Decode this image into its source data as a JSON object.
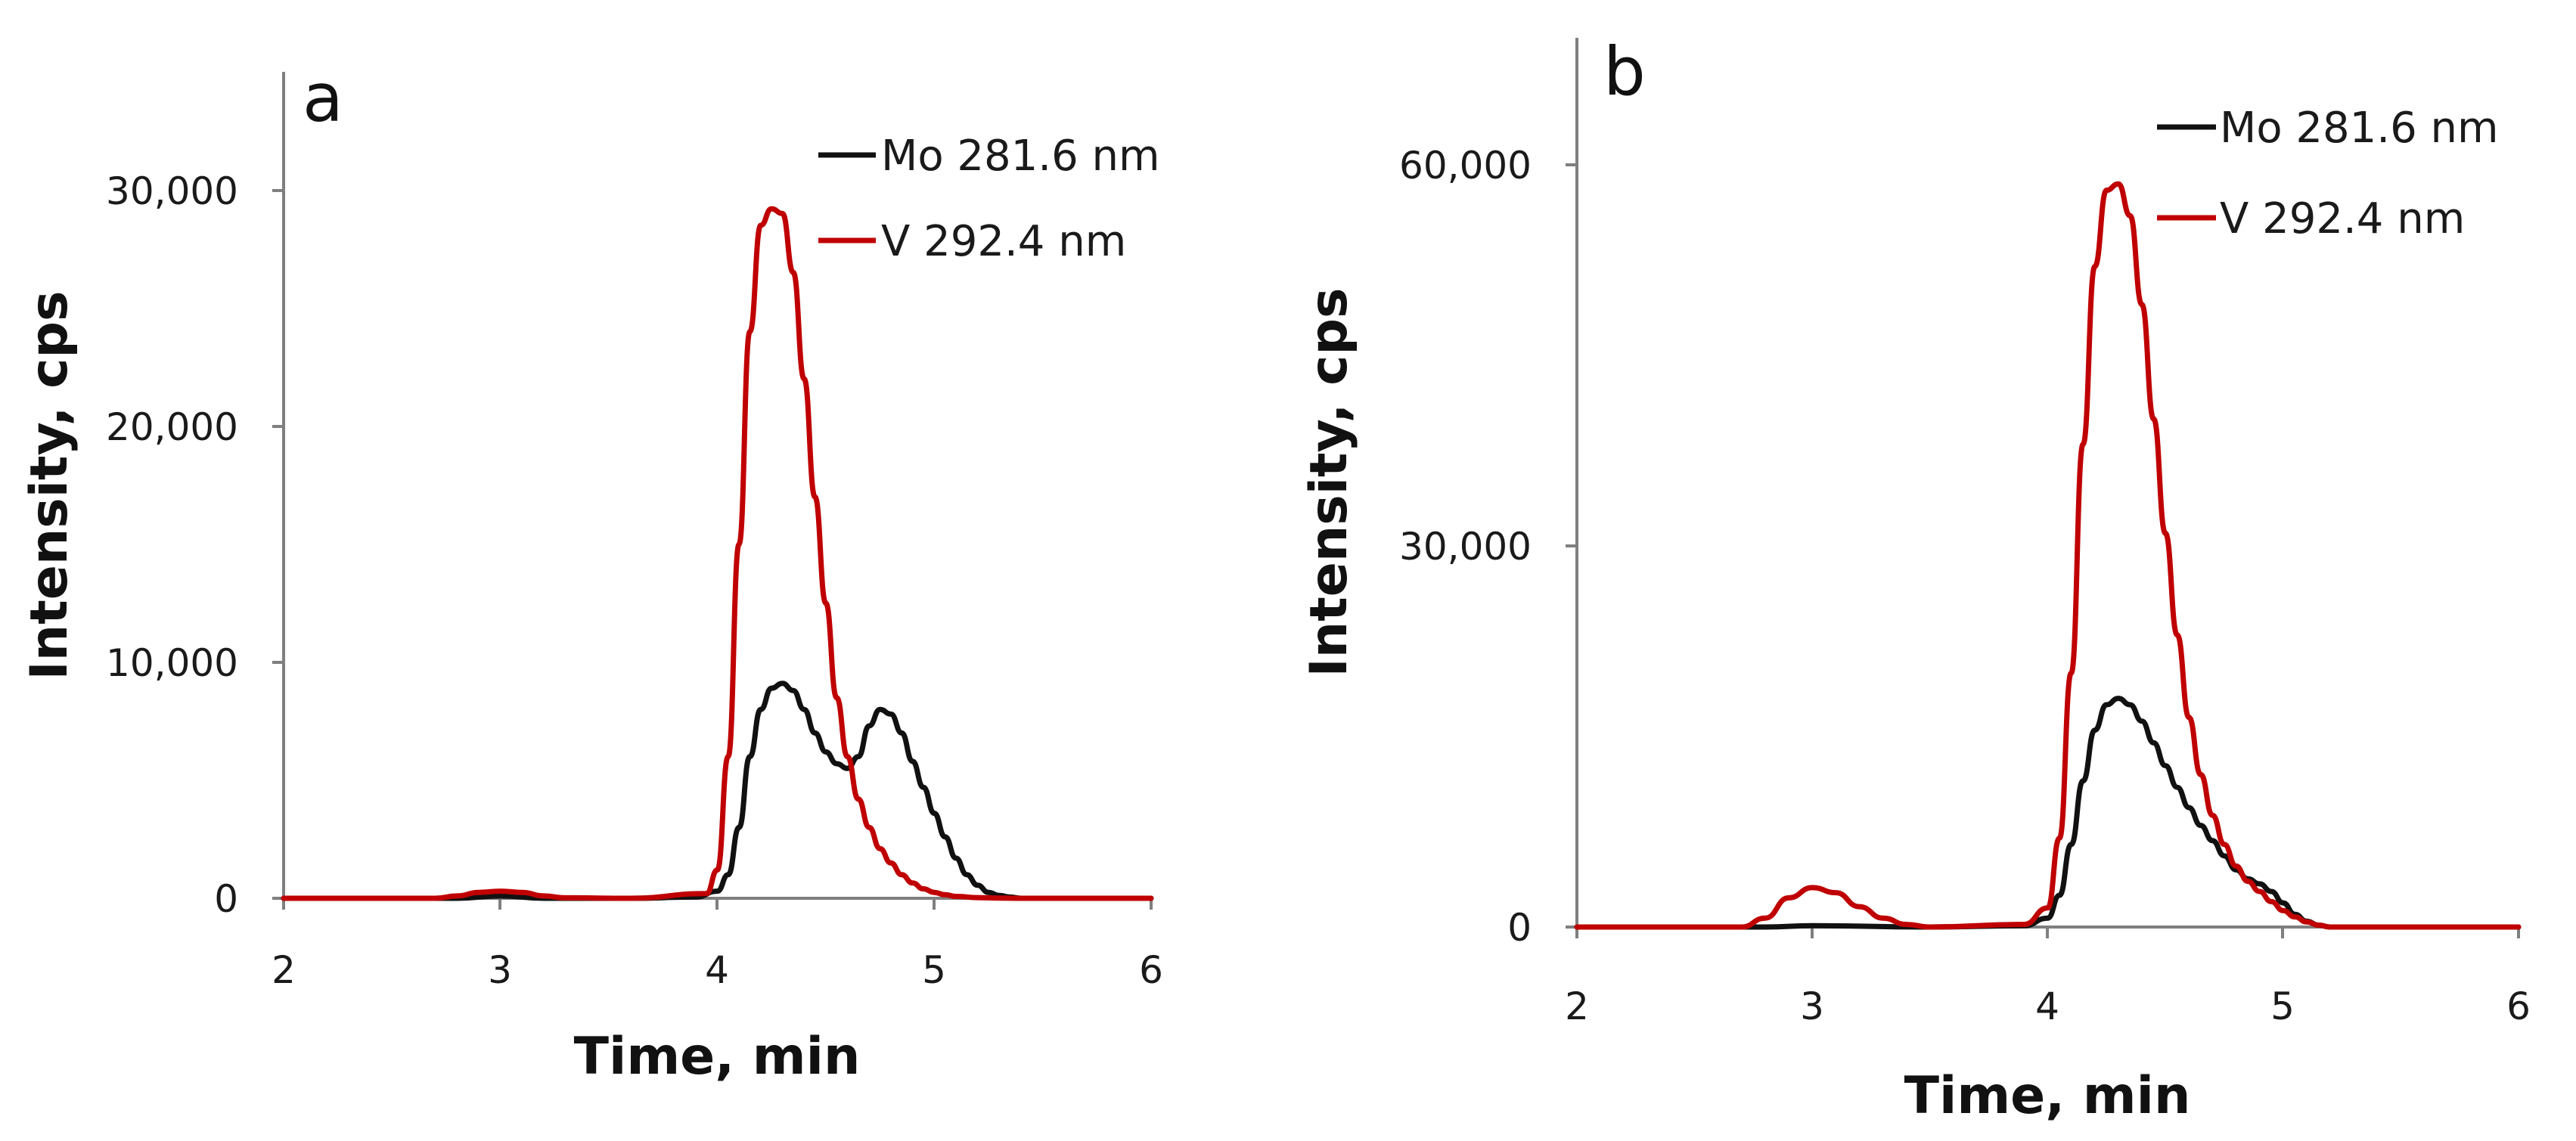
{
  "chart_data": [
    {
      "panel": "a",
      "type": "line",
      "xlabel": "Time, min",
      "ylabel": "Intensity, cps",
      "xlim": [
        2,
        6
      ],
      "ylim": [
        0,
        35000
      ],
      "xticks": [
        2,
        3,
        4,
        5,
        6
      ],
      "xtick_labels": [
        "2",
        "3",
        "4",
        "5",
        "6"
      ],
      "yticks": [
        0,
        10000,
        20000,
        30000
      ],
      "ytick_labels": [
        "0",
        "10,000",
        "20,000",
        "30,000"
      ],
      "legend_position": "top-right",
      "series": [
        {
          "name": "Mo 281.6 nm",
          "color": "#111111",
          "x": [
            2,
            2.8,
            3.0,
            3.2,
            3.6,
            3.9,
            4.0,
            4.05,
            4.1,
            4.15,
            4.2,
            4.25,
            4.3,
            4.35,
            4.4,
            4.45,
            4.5,
            4.55,
            4.6,
            4.65,
            4.7,
            4.75,
            4.8,
            4.85,
            4.9,
            4.95,
            5.0,
            5.05,
            5.1,
            5.15,
            5.2,
            5.25,
            5.3,
            5.35,
            5.4,
            5.6,
            6.0
          ],
          "values": [
            0,
            0,
            100,
            0,
            0,
            50,
            300,
            1000,
            3000,
            6000,
            8000,
            8900,
            9100,
            8800,
            8000,
            7000,
            6200,
            5700,
            5500,
            6000,
            7300,
            8000,
            7800,
            7000,
            5800,
            4700,
            3600,
            2600,
            1700,
            1000,
            550,
            250,
            120,
            50,
            0,
            0,
            0
          ]
        },
        {
          "name": "V 292.4 nm",
          "color": "#c00000",
          "x": [
            2,
            2.7,
            2.8,
            2.9,
            3.0,
            3.1,
            3.2,
            3.3,
            3.6,
            3.95,
            4.0,
            4.05,
            4.1,
            4.15,
            4.2,
            4.25,
            4.3,
            4.35,
            4.4,
            4.45,
            4.5,
            4.55,
            4.6,
            4.65,
            4.7,
            4.75,
            4.8,
            4.85,
            4.9,
            4.95,
            5.0,
            5.05,
            5.1,
            5.2,
            5.3,
            5.4,
            6.0
          ],
          "values": [
            0,
            0,
            100,
            250,
            300,
            250,
            100,
            20,
            0,
            200,
            1200,
            6000,
            15000,
            24000,
            28500,
            29200,
            29000,
            26500,
            22000,
            17000,
            12500,
            8500,
            6000,
            4200,
            3000,
            2100,
            1500,
            1000,
            650,
            400,
            250,
            150,
            80,
            30,
            10,
            0,
            0
          ]
        }
      ]
    },
    {
      "panel": "b",
      "type": "line",
      "xlabel": "Time, min",
      "ylabel": "Intensity, cps",
      "xlim": [
        2,
        6
      ],
      "ylim": [
        0,
        70000
      ],
      "xticks": [
        2,
        3,
        4,
        5,
        6
      ],
      "xtick_labels": [
        "2",
        "3",
        "4",
        "5",
        "6"
      ],
      "yticks": [
        0,
        30000,
        60000
      ],
      "ytick_labels": [
        "0",
        "30,000",
        "60,000"
      ],
      "legend_position": "top-right",
      "series": [
        {
          "name": "Mo 281.6 nm",
          "color": "#111111",
          "x": [
            2,
            2.8,
            3.0,
            3.5,
            3.9,
            4.0,
            4.05,
            4.1,
            4.15,
            4.2,
            4.25,
            4.3,
            4.35,
            4.4,
            4.45,
            4.5,
            4.55,
            4.6,
            4.65,
            4.7,
            4.75,
            4.8,
            4.85,
            4.9,
            4.95,
            5.0,
            5.05,
            5.1,
            5.15,
            5.2,
            6.0
          ],
          "values": [
            0,
            0,
            100,
            0,
            100,
            700,
            2500,
            6500,
            11500,
            15500,
            17500,
            18000,
            17500,
            16200,
            14500,
            12700,
            11000,
            9400,
            8000,
            6800,
            5600,
            4500,
            3800,
            3400,
            2800,
            1900,
            1000,
            450,
            150,
            0,
            0
          ]
        },
        {
          "name": "V 292.4 nm",
          "color": "#c00000",
          "x": [
            2,
            2.7,
            2.8,
            2.9,
            3.0,
            3.1,
            3.2,
            3.3,
            3.4,
            3.5,
            3.9,
            4.0,
            4.05,
            4.1,
            4.15,
            4.2,
            4.25,
            4.3,
            4.35,
            4.4,
            4.45,
            4.5,
            4.55,
            4.6,
            4.65,
            4.7,
            4.75,
            4.8,
            4.85,
            4.9,
            4.95,
            5.0,
            5.05,
            5.1,
            5.15,
            5.2,
            6.0
          ],
          "values": [
            0,
            0,
            700,
            2300,
            3100,
            2700,
            1600,
            700,
            200,
            0,
            200,
            1500,
            7000,
            20000,
            38000,
            52000,
            58000,
            58500,
            56000,
            49000,
            40000,
            31000,
            23000,
            16500,
            12000,
            8800,
            6500,
            4800,
            3600,
            2800,
            2000,
            1300,
            800,
            400,
            150,
            0,
            0
          ]
        }
      ]
    }
  ]
}
